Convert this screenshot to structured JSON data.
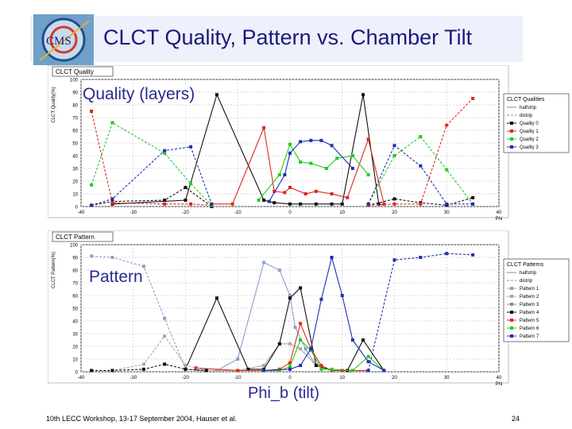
{
  "slide": {
    "title": "CLCT Quality, Pattern vs. Chamber Tilt",
    "footer": "10th LECC Workshop, 13-17 September 2004, Hauser et al.",
    "page_number": "24",
    "logo_text": "CMS",
    "label_quality": "Quality (layers)",
    "label_pattern": "Pattern",
    "label_phi": "Phi_b (tilt)",
    "accent": "#1a1a7a"
  },
  "chart_data": [
    {
      "type": "line",
      "title": "CLCT Quality",
      "xlabel": "Phi",
      "ylabel": "CLCT Quality(%)",
      "xlim": [
        -40,
        40
      ],
      "ylim": [
        0,
        100
      ],
      "xticks": [
        -40,
        -30,
        -20,
        -10,
        0,
        10,
        20,
        30,
        40
      ],
      "yticks": [
        0,
        10,
        20,
        30,
        40,
        50,
        60,
        70,
        80,
        90,
        100
      ],
      "grid": true,
      "legend": {
        "title": "CLCT Qualities",
        "position": "right",
        "entries": [
          "halfstrip",
          "distrip",
          "Quality 0",
          "Quality 1",
          "Quality 2",
          "Quality 3"
        ]
      },
      "series": [
        {
          "name": "Quality 0",
          "color": "#111111",
          "dash": "solid",
          "x": [
            -34,
            -20,
            -14,
            -5,
            -3,
            0,
            2,
            5,
            8,
            10,
            14,
            17
          ],
          "y": [
            2,
            5,
            88,
            5,
            3,
            2,
            2,
            2,
            2,
            2,
            88,
            2
          ]
        },
        {
          "name": "Quality 1",
          "color": "#e0261f",
          "dash": "solid",
          "x": [
            -15,
            -11,
            -5,
            -3,
            -1,
            0,
            3,
            5,
            8,
            11,
            15,
            18
          ],
          "y": [
            2,
            2,
            62,
            12,
            11,
            15,
            10,
            12,
            10,
            7,
            53,
            2
          ]
        },
        {
          "name": "Quality 2",
          "color": "#22cc22",
          "dash": "solid",
          "x": [
            -6,
            -2,
            0,
            2,
            4,
            7,
            9,
            12,
            15
          ],
          "y": [
            5,
            25,
            49,
            35,
            34,
            30,
            38,
            40,
            25
          ]
        },
        {
          "name": "Quality 3",
          "color": "#1f2fb0",
          "dash": "solid",
          "x": [
            -4,
            -1,
            0,
            2,
            4,
            6,
            8,
            12
          ],
          "y": [
            4,
            25,
            42,
            51,
            52,
            52,
            48,
            30
          ]
        },
        {
          "name": "Quality 0",
          "color": "#111111",
          "dash": "dashed",
          "x": [
            -38,
            -34,
            -24,
            -20,
            -15
          ],
          "y": [
            1,
            4,
            5,
            15,
            0
          ]
        },
        {
          "name": "Quality 1",
          "color": "#e0261f",
          "dash": "dashed",
          "x": [
            -38,
            -34,
            -24,
            -19,
            -15
          ],
          "y": [
            75,
            3,
            2,
            2,
            1
          ]
        },
        {
          "name": "Quality 2",
          "color": "#22cc22",
          "dash": "dashed",
          "x": [
            -38,
            -34,
            -24,
            -19,
            -15
          ],
          "y": [
            17,
            66,
            42,
            18,
            1
          ]
        },
        {
          "name": "Quality 3",
          "color": "#1f2fb0",
          "dash": "dashed",
          "x": [
            -38,
            -34,
            -24,
            -19,
            -15
          ],
          "y": [
            1,
            6,
            44,
            47,
            2
          ]
        },
        {
          "name": "Quality 0",
          "color": "#111111",
          "dash": "dashed",
          "x": [
            15,
            20,
            25,
            30,
            35
          ],
          "y": [
            1,
            6,
            3,
            1,
            7
          ]
        },
        {
          "name": "Quality 1",
          "color": "#e0261f",
          "dash": "dashed",
          "x": [
            15,
            20,
            25,
            30,
            35
          ],
          "y": [
            1,
            2,
            2,
            64,
            85
          ]
        },
        {
          "name": "Quality 2",
          "color": "#22cc22",
          "dash": "dashed",
          "x": [
            15,
            20,
            25,
            30,
            35
          ],
          "y": [
            2,
            40,
            55,
            29,
            2
          ]
        },
        {
          "name": "Quality 3",
          "color": "#1f2fb0",
          "dash": "dashed",
          "x": [
            15,
            20,
            25,
            30,
            35
          ],
          "y": [
            2,
            48,
            32,
            2,
            2
          ]
        }
      ]
    },
    {
      "type": "line",
      "title": "CLCT Pattern",
      "xlabel": "Phi",
      "ylabel": "CLCT Pattern(%)",
      "xlim": [
        -40,
        40
      ],
      "ylim": [
        0,
        100
      ],
      "xticks": [
        -40,
        -30,
        -20,
        -10,
        0,
        10,
        20,
        30,
        40
      ],
      "yticks": [
        0,
        10,
        20,
        30,
        40,
        50,
        60,
        70,
        80,
        90,
        100
      ],
      "grid": true,
      "legend": {
        "title": "CLCT Patterns",
        "position": "right",
        "entries": [
          "halfstrip",
          "distrip",
          "Pattern 1",
          "Pattern 2",
          "Pattern 3",
          "Pattern 4",
          "Pattern 5",
          "Pattern 6",
          "Pattern 7"
        ]
      },
      "series": [
        {
          "name": "Pattern 1",
          "color": "#8aa0c8",
          "dash": "solid",
          "x": [
            -14,
            -10,
            -5,
            -2,
            0,
            1,
            3,
            5
          ],
          "y": [
            1,
            10,
            86,
            80,
            60,
            35,
            18,
            5
          ]
        },
        {
          "name": "Pattern 2",
          "color": "#a8a8a8",
          "dash": "solid",
          "x": [
            -18,
            -10,
            -5,
            -2,
            0,
            2,
            5
          ],
          "y": [
            1,
            1,
            5,
            22,
            22,
            18,
            5
          ]
        },
        {
          "name": "Pattern 4",
          "color": "#111111",
          "dash": "solid",
          "x": [
            -20,
            -14,
            -8,
            -5,
            -2,
            0,
            2,
            5,
            8,
            11,
            14,
            18
          ],
          "y": [
            2,
            58,
            2,
            2,
            22,
            58,
            66,
            5,
            1,
            1,
            25,
            1
          ]
        },
        {
          "name": "Pattern 5",
          "color": "#e0261f",
          "dash": "solid",
          "x": [
            -18,
            -10,
            -5,
            -2,
            0,
            2,
            4,
            6,
            8,
            10,
            12,
            15
          ],
          "y": [
            3,
            1,
            1,
            2,
            7,
            38,
            18,
            5,
            1,
            1,
            1,
            1
          ]
        },
        {
          "name": "Pattern 6",
          "color": "#22cc22",
          "dash": "solid",
          "x": [
            -5,
            -2,
            0,
            2,
            4,
            6,
            8,
            12,
            15,
            18
          ],
          "y": [
            1,
            1,
            4,
            25,
            17,
            2,
            2,
            1,
            12,
            1
          ]
        },
        {
          "name": "Pattern 7",
          "color": "#1f2fb0",
          "dash": "solid",
          "x": [
            -5,
            0,
            2,
            4,
            6,
            8,
            10,
            12,
            15,
            18
          ],
          "y": [
            1,
            2,
            5,
            18,
            57,
            90,
            60,
            25,
            8,
            1
          ]
        },
        {
          "name": "Pattern 1",
          "color": "#8aa0c8",
          "dash": "dashed",
          "x": [
            -38,
            -34,
            -28,
            -24,
            -20,
            -16
          ],
          "y": [
            91,
            90,
            83,
            42,
            2,
            1
          ]
        },
        {
          "name": "Pattern 2",
          "color": "#a8a8a8",
          "dash": "dashed",
          "x": [
            -38,
            -34,
            -28,
            -24,
            -20,
            -16
          ],
          "y": [
            1,
            1,
            6,
            28,
            5,
            1
          ]
        },
        {
          "name": "Pattern 4",
          "color": "#111111",
          "dash": "dashed",
          "x": [
            -38,
            -34,
            -28,
            -24,
            -20,
            -16
          ],
          "y": [
            1,
            1,
            2,
            6,
            2,
            1
          ]
        },
        {
          "name": "Pattern 7",
          "color": "#1f2fb0",
          "dash": "dashed",
          "x": [
            15,
            20,
            25,
            30,
            35
          ],
          "y": [
            1,
            88,
            90,
            93,
            92
          ]
        }
      ]
    }
  ]
}
